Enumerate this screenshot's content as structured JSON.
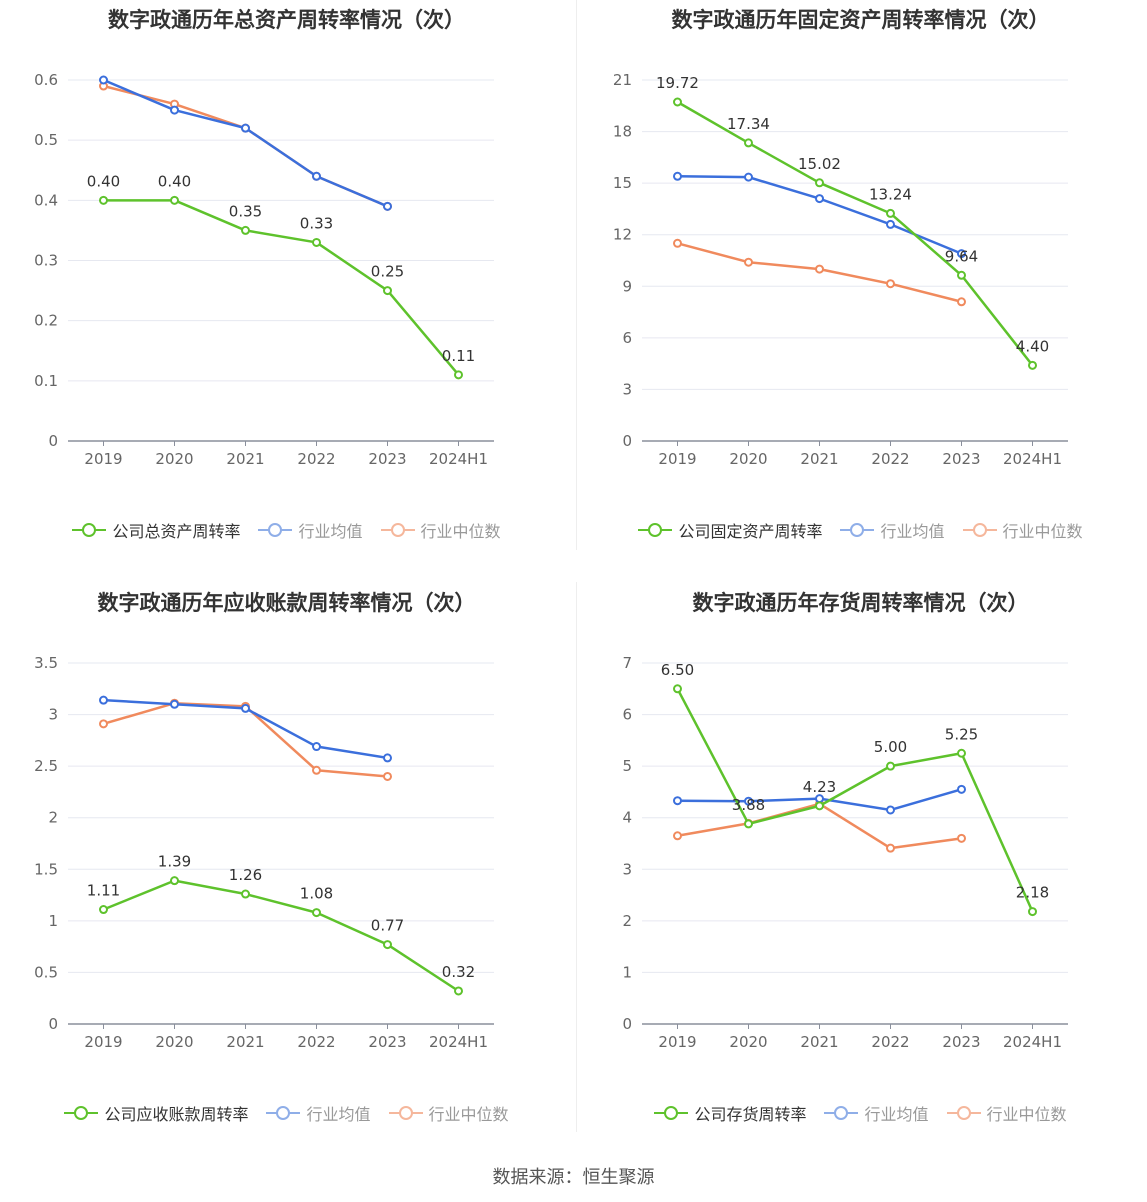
{
  "source": "数据来源：恒生聚源",
  "colors": {
    "company": "#5ec22c",
    "avg": "#3b6fdc",
    "median": "#f08a5d",
    "legend_avg": "#8faee8",
    "legend_median": "#f5b79c"
  },
  "charts": [
    {
      "title": "数字政通历年总资产周转率情况（次）",
      "legend": [
        "公司总资产周转率",
        "行业均值",
        "行业中位数"
      ],
      "chart_data": {
        "type": "line",
        "categories": [
          "2019",
          "2020",
          "2021",
          "2022",
          "2023",
          "2024H1"
        ],
        "ylim": [
          0,
          0.6
        ],
        "yticks": [
          "0",
          "0.1",
          "0.2",
          "0.3",
          "0.4",
          "0.5",
          "0.6"
        ],
        "ytick_values": [
          0,
          0.1,
          0.2,
          0.3,
          0.4,
          0.5,
          0.6
        ],
        "series": [
          {
            "name": "公司总资产周转率",
            "values": [
              0.4,
              0.4,
              0.35,
              0.33,
              0.25,
              0.11
            ],
            "labels": [
              "0.40",
              "0.40",
              "0.35",
              "0.33",
              "0.25",
              "0.11"
            ]
          },
          {
            "name": "行业均值",
            "values": [
              0.6,
              0.55,
              0.52,
              0.44,
              0.39,
              null
            ]
          },
          {
            "name": "行业中位数",
            "values": [
              0.59,
              0.56,
              0.52,
              0.44,
              0.39,
              null
            ]
          }
        ]
      }
    },
    {
      "title": "数字政通历年固定资产周转率情况（次）",
      "legend": [
        "公司固定资产周转率",
        "行业均值",
        "行业中位数"
      ],
      "chart_data": {
        "type": "line",
        "categories": [
          "2019",
          "2020",
          "2021",
          "2022",
          "2023",
          "2024H1"
        ],
        "ylim": [
          0,
          21
        ],
        "yticks": [
          "0",
          "3",
          "6",
          "9",
          "12",
          "15",
          "18",
          "21"
        ],
        "ytick_values": [
          0,
          3,
          6,
          9,
          12,
          15,
          18,
          21
        ],
        "series": [
          {
            "name": "公司固定资产周转率",
            "values": [
              19.72,
              17.34,
              15.02,
              13.24,
              9.64,
              4.4
            ],
            "labels": [
              "19.72",
              "17.34",
              "15.02",
              "13.24",
              "9.64",
              "4.40"
            ]
          },
          {
            "name": "行业均值",
            "values": [
              15.4,
              15.35,
              14.1,
              12.6,
              10.9,
              null
            ]
          },
          {
            "name": "行业中位数",
            "values": [
              11.5,
              10.4,
              10.0,
              9.15,
              8.1,
              null
            ]
          }
        ]
      }
    },
    {
      "title": "数字政通历年应收账款周转率情况（次）",
      "legend": [
        "公司应收账款周转率",
        "行业均值",
        "行业中位数"
      ],
      "chart_data": {
        "type": "line",
        "categories": [
          "2019",
          "2020",
          "2021",
          "2022",
          "2023",
          "2024H1"
        ],
        "ylim": [
          0,
          3.5
        ],
        "yticks": [
          "0",
          "0.5",
          "1",
          "1.5",
          "2",
          "2.5",
          "3",
          "3.5"
        ],
        "ytick_values": [
          0,
          0.5,
          1,
          1.5,
          2,
          2.5,
          3,
          3.5
        ],
        "series": [
          {
            "name": "公司应收账款周转率",
            "values": [
              1.11,
              1.39,
              1.26,
              1.08,
              0.77,
              0.32
            ],
            "labels": [
              "1.11",
              "1.39",
              "1.26",
              "1.08",
              "0.77",
              "0.32"
            ]
          },
          {
            "name": "行业均值",
            "values": [
              3.14,
              3.1,
              3.06,
              2.69,
              2.58,
              null
            ]
          },
          {
            "name": "行业中位数",
            "values": [
              2.91,
              3.11,
              3.08,
              2.46,
              2.4,
              null
            ]
          }
        ]
      }
    },
    {
      "title": "数字政通历年存货周转率情况（次）",
      "legend": [
        "公司存货周转率",
        "行业均值",
        "行业中位数"
      ],
      "chart_data": {
        "type": "line",
        "categories": [
          "2019",
          "2020",
          "2021",
          "2022",
          "2023",
          "2024H1"
        ],
        "ylim": [
          0,
          7
        ],
        "yticks": [
          "0",
          "1",
          "2",
          "3",
          "4",
          "5",
          "6",
          "7"
        ],
        "ytick_values": [
          0,
          1,
          2,
          3,
          4,
          5,
          6,
          7
        ],
        "series": [
          {
            "name": "公司存货周转率",
            "values": [
              6.5,
              3.88,
              4.23,
              5.0,
              5.25,
              2.18
            ],
            "labels": [
              "6.50",
              "3.88",
              "4.23",
              "5.00",
              "5.25",
              "2.18"
            ]
          },
          {
            "name": "行业均值",
            "values": [
              4.33,
              4.32,
              4.37,
              4.15,
              4.55,
              null
            ]
          },
          {
            "name": "行业中位数",
            "values": [
              3.65,
              3.89,
              4.27,
              3.41,
              3.6,
              null
            ]
          }
        ]
      }
    }
  ]
}
